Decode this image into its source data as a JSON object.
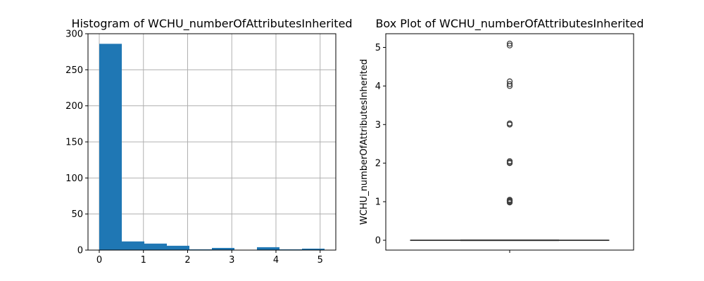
{
  "chart_data": [
    {
      "type": "bar",
      "title": "Histogram of WCHU_numberOfAttributesInherited",
      "xlabel": "",
      "ylabel": "",
      "grid": true,
      "xlim": [
        -0.255,
        5.355
      ],
      "ylim": [
        0,
        300
      ],
      "xticks": [
        0,
        1,
        2,
        3,
        4,
        5
      ],
      "yticks": [
        0,
        50,
        100,
        150,
        200,
        250,
        300
      ],
      "bin_edges": [
        0,
        0.51,
        1.02,
        1.53,
        2.04,
        2.55,
        3.06,
        3.57,
        4.08,
        4.59,
        5.1
      ],
      "values": [
        286,
        12,
        9,
        6,
        1,
        3,
        0,
        4,
        1,
        2
      ],
      "color": "#1f77b4"
    },
    {
      "type": "box",
      "title": "Box Plot of WCHU_numberOfAttributesInherited",
      "xlabel": "",
      "ylabel": "WCHU_numberOfAttributesInherited",
      "ylim": [
        -0.255,
        5.355
      ],
      "yticks": [
        0,
        1,
        2,
        3,
        4,
        5
      ],
      "box": {
        "min": 0,
        "q1": 0,
        "median": 0,
        "q3": 0,
        "max": 0
      },
      "outliers": [
        1,
        1.02,
        1.05,
        0.98,
        1.03,
        2,
        2.02,
        2.05,
        3,
        3.03,
        4,
        4.05,
        4.12,
        5.05,
        5.1
      ],
      "color": "#1f77b4"
    }
  ]
}
